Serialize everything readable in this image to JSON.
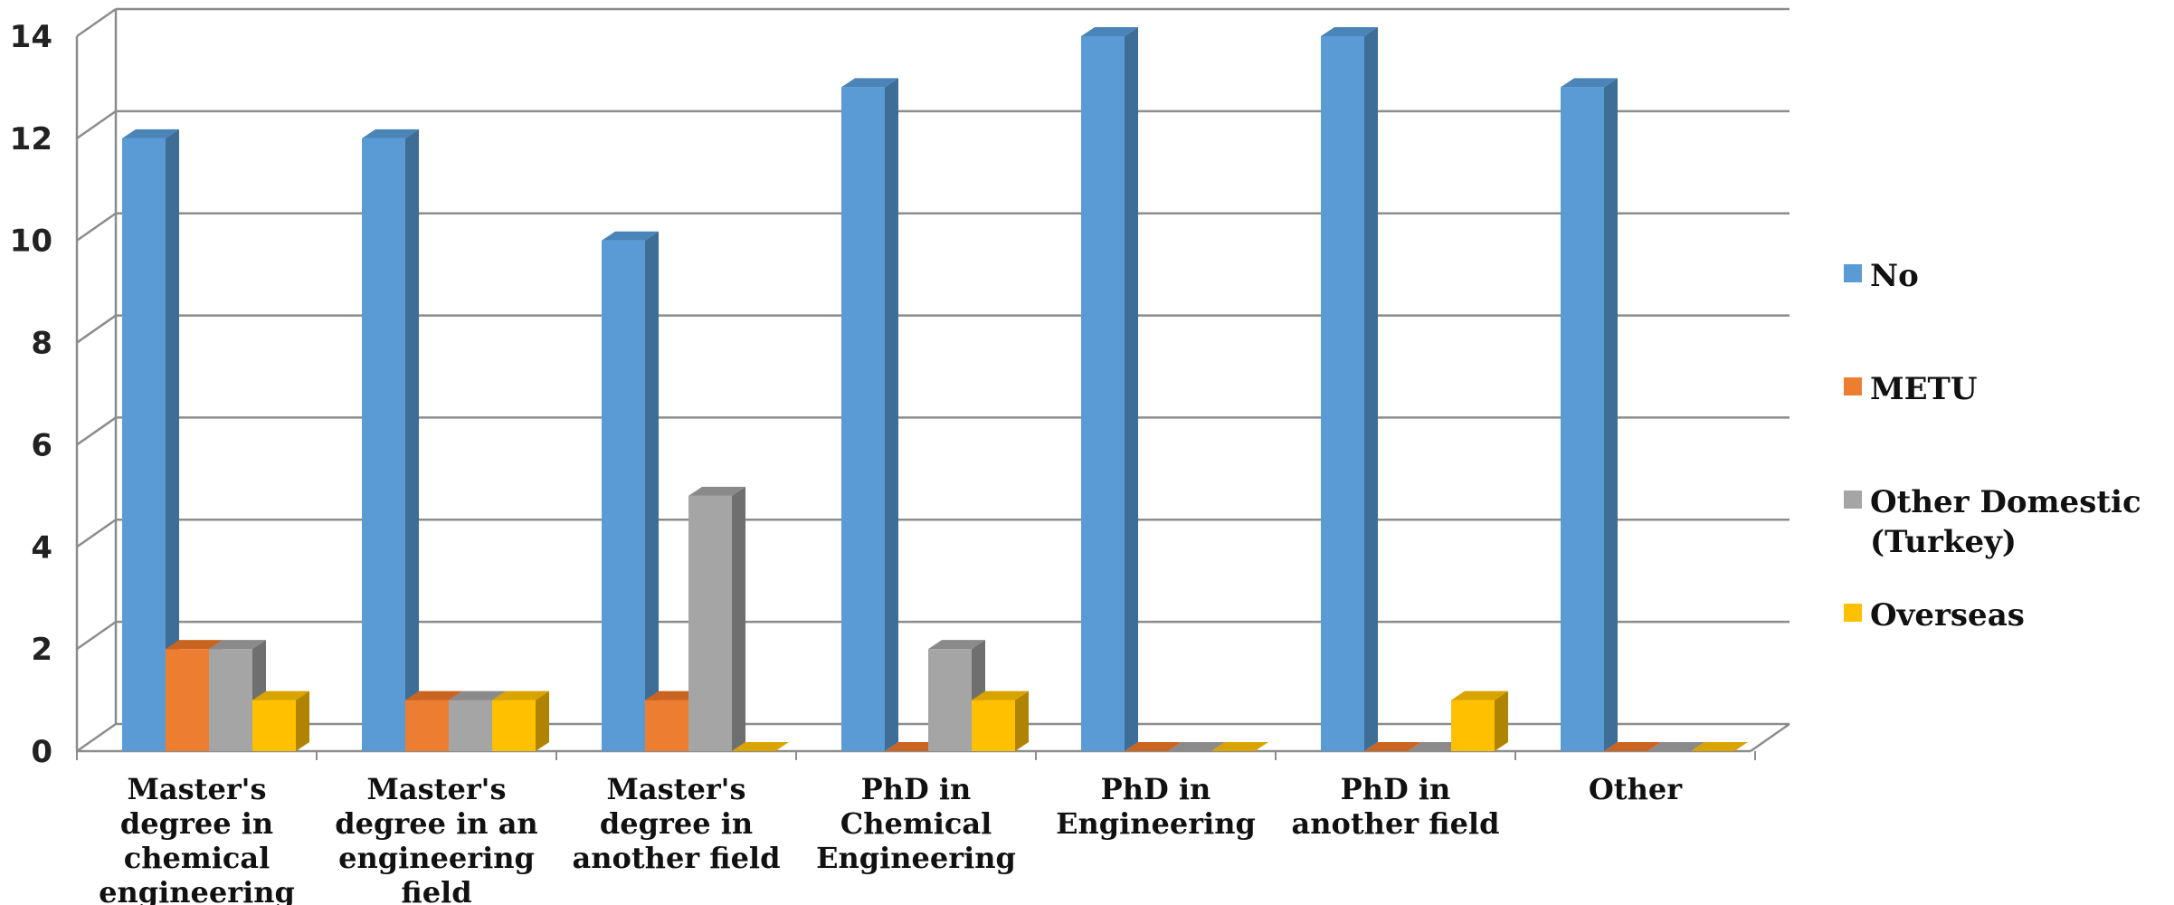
{
  "chart_data": {
    "type": "bar",
    "categories": [
      [
        "Master's",
        "degree in",
        "chemical",
        "engineering"
      ],
      [
        "Master's",
        "degree in an",
        "engineering",
        "field"
      ],
      [
        "Master's",
        "degree in",
        "another field"
      ],
      [
        "PhD in",
        "Chemical",
        "Engineering"
      ],
      [
        "PhD in",
        "Engineering"
      ],
      [
        "PhD in",
        "another field"
      ],
      [
        "Other"
      ]
    ],
    "series": [
      {
        "name": "No",
        "values": [
          12,
          12,
          10,
          13,
          14,
          14,
          13
        ],
        "color": "#5B9BD5",
        "side_color": "#3E6D96",
        "top_color": "#4A84B8"
      },
      {
        "name": "METU",
        "values": [
          2,
          1,
          1,
          0,
          0,
          0,
          0
        ],
        "color": "#ED7D31",
        "side_color": "#A4561F",
        "top_color": "#C96520"
      },
      {
        "name": "Other Domestic (Turkey)",
        "legend_lines": [
          "Other Domestic",
          "(Turkey)"
        ],
        "values": [
          2,
          1,
          5,
          2,
          0,
          0,
          0
        ],
        "color": "#A5A5A5",
        "side_color": "#6F6F6F",
        "top_color": "#8A8A8A"
      },
      {
        "name": "Overseas",
        "values": [
          1,
          1,
          0,
          1,
          0,
          1,
          0
        ],
        "color": "#FFC000",
        "side_color": "#B08400",
        "top_color": "#D9A300"
      }
    ],
    "ylim": [
      0,
      14
    ],
    "yticks": [
      0,
      2,
      4,
      6,
      8,
      10,
      12,
      14
    ],
    "grid": true,
    "legend_position": "right",
    "title": "",
    "xlabel": "",
    "ylabel": ""
  }
}
